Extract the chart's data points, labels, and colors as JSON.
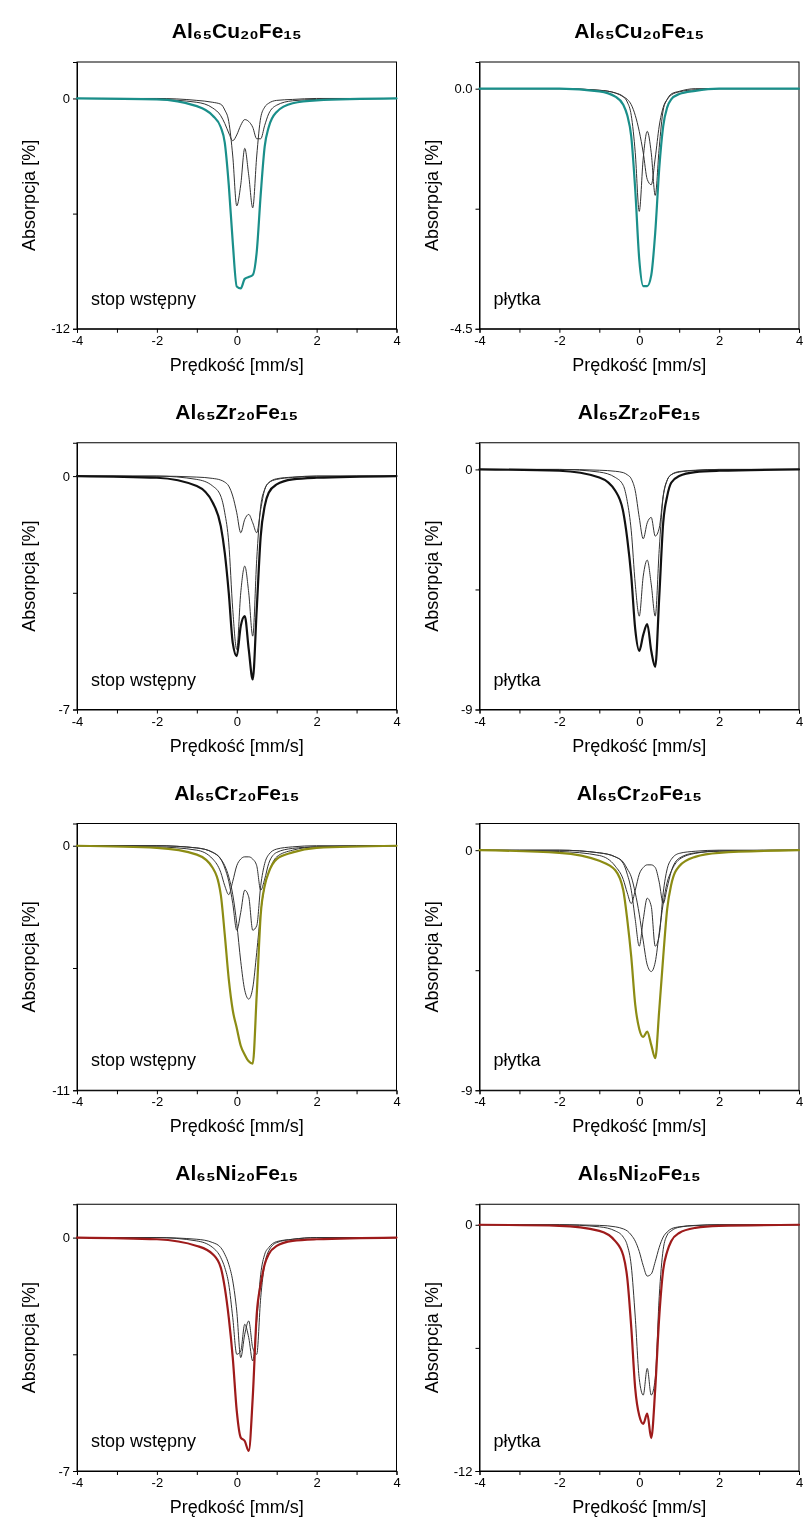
{
  "chart_data": [
    {
      "type": "line",
      "title": "Al₆₅Cu₂₀Fe₁₅",
      "xlabel": "Prędkość [mm/s]",
      "ylabel": "Absorpcja [%]",
      "annotations": [
        "stop wstępny"
      ],
      "x": [
        -4,
        -2,
        -1,
        -0.6,
        -0.4,
        -0.3,
        -0.2,
        -0.1,
        0,
        0.1,
        0.2,
        0.3,
        0.4,
        0.5,
        0.6,
        0.7,
        0.8,
        1,
        1.4,
        2,
        4
      ],
      "xlim": [
        -4,
        4
      ],
      "xticks": [
        -4,
        {
          "value": -3,
          "label": null
        },
        -2,
        {
          "value": -1,
          "label": null
        },
        0,
        {
          "value": 1,
          "label": null
        },
        2,
        {
          "value": 3,
          "label": null
        },
        4
      ],
      "ylim": [
        -12,
        1.9
      ],
      "yticks": [
        -12,
        {
          "value": -6,
          "label": null
        },
        0
      ],
      "series": [
        {
          "color": "#1a8f8a",
          "values": [
            0,
            -0.05,
            -0.4,
            -0.9,
            -1.5,
            -2.3,
            -4.5,
            -7.5,
            -9.8,
            -9.9,
            -9.4,
            -9.3,
            -9.2,
            -8,
            -5,
            -2.5,
            -1.5,
            -0.7,
            -0.25,
            -0.1,
            0
          ]
        },
        {
          "color": "#333333",
          "values": [
            0,
            0,
            -0.1,
            -0.2,
            -0.3,
            -0.6,
            -1.2,
            -3,
            -5.6,
            -4.5,
            -2.6,
            -4,
            -5.7,
            -3,
            -1,
            -0.45,
            -0.25,
            -0.1,
            -0.05,
            0,
            0
          ]
        },
        {
          "color": "#333333",
          "values": [
            0,
            -0.05,
            -0.2,
            -0.5,
            -0.9,
            -1.3,
            -1.8,
            -2.2,
            -1.9,
            -1.4,
            -1.1,
            -1.2,
            -1.5,
            -2.1,
            -2.1,
            -1.4,
            -0.8,
            -0.35,
            -0.12,
            -0.05,
            0
          ]
        }
      ]
    },
    {
      "type": "line",
      "title": "Al₆₅Cu₂₀Fe₁₅",
      "xlabel": "Prędkość [mm/s]",
      "ylabel": "Absorpcja [%]",
      "annotations": [
        "płytka"
      ],
      "x": [
        -4,
        -2,
        -1,
        -0.6,
        -0.4,
        -0.3,
        -0.2,
        -0.1,
        0,
        0.1,
        0.2,
        0.3,
        0.4,
        0.5,
        0.6,
        0.7,
        0.8,
        1,
        1.4,
        2,
        4
      ],
      "xlim": [
        -4,
        4
      ],
      "xticks": [
        -4,
        {
          "value": -3,
          "label": null
        },
        -2,
        {
          "value": -1,
          "label": null
        },
        0,
        {
          "value": 1,
          "label": null
        },
        2,
        {
          "value": 3,
          "label": null
        },
        4
      ],
      "ylim": [
        -4.5,
        0.5
      ],
      "yticks": [
        -4.5,
        {
          "value": -2.25,
          "label": null
        },
        {
          "value": 0,
          "label": "0.0"
        }
      ],
      "series": [
        {
          "color": "#1a8f8a",
          "values": [
            0,
            0,
            -0.05,
            -0.15,
            -0.3,
            -0.5,
            -0.9,
            -1.9,
            -3.2,
            -3.7,
            -3.7,
            -3.5,
            -2.7,
            -1.5,
            -0.7,
            -0.35,
            -0.2,
            -0.1,
            -0.04,
            0,
            0
          ]
        },
        {
          "color": "#333333",
          "values": [
            0,
            0,
            -0.03,
            -0.08,
            -0.15,
            -0.25,
            -0.5,
            -1.2,
            -2.3,
            -1.3,
            -0.8,
            -1.2,
            -2.0,
            -1.1,
            -0.4,
            -0.2,
            -0.1,
            -0.05,
            0,
            0,
            0
          ]
        },
        {
          "color": "#333333",
          "values": [
            0,
            0,
            -0.03,
            -0.08,
            -0.15,
            -0.2,
            -0.3,
            -0.5,
            -0.8,
            -1.2,
            -1.7,
            -1.8,
            -1.3,
            -0.7,
            -0.35,
            -0.2,
            -0.12,
            -0.06,
            -0.02,
            0,
            0
          ]
        }
      ]
    },
    {
      "type": "line",
      "title": "Al₆₅Zr₂₀Fe₁₅",
      "xlabel": "Prędkość [mm/s]",
      "ylabel": "Absorpcja [%]",
      "annotations": [
        "stop wstępny"
      ],
      "x": [
        -4,
        -2,
        -1,
        -0.6,
        -0.4,
        -0.3,
        -0.2,
        -0.1,
        0,
        0.1,
        0.2,
        0.3,
        0.4,
        0.5,
        0.6,
        0.7,
        0.8,
        1,
        1.4,
        2,
        4
      ],
      "xlim": [
        -4,
        4
      ],
      "xticks": [
        -4,
        {
          "value": -3,
          "label": null
        },
        -2,
        {
          "value": -1,
          "label": null
        },
        0,
        {
          "value": 1,
          "label": null
        },
        2,
        {
          "value": 3,
          "label": null
        },
        4
      ],
      "ylim": [
        -7,
        1
      ],
      "yticks": [
        -7,
        {
          "value": -3.5,
          "label": null
        },
        0
      ],
      "series": [
        {
          "color": "#111111",
          "values": [
            0,
            -0.05,
            -0.3,
            -0.8,
            -1.5,
            -2.3,
            -3.5,
            -5,
            -5.4,
            -4.5,
            -4.2,
            -5.2,
            -6.1,
            -4,
            -1.8,
            -0.9,
            -0.5,
            -0.25,
            -0.1,
            -0.05,
            0
          ]
        },
        {
          "color": "#333333",
          "values": [
            0,
            0,
            -0.1,
            -0.3,
            -0.6,
            -1.1,
            -2,
            -4,
            -5.2,
            -3.5,
            -2.7,
            -3.5,
            -4.8,
            -2.5,
            -0.9,
            -0.4,
            -0.2,
            -0.1,
            -0.04,
            0,
            0
          ]
        },
        {
          "color": "#333333",
          "values": [
            0,
            0,
            -0.03,
            -0.07,
            -0.12,
            -0.18,
            -0.3,
            -0.6,
            -1.1,
            -1.7,
            -1.3,
            -1.15,
            -1.4,
            -1.7,
            -1.0,
            -0.4,
            -0.2,
            -0.08,
            -0.03,
            0,
            0
          ]
        }
      ]
    },
    {
      "type": "line",
      "title": "Al₆₅Zr₂₀Fe₁₅",
      "xlabel": "Prędkość [mm/s]",
      "ylabel": "Absorpcja [%]",
      "annotations": [
        "płytka"
      ],
      "x": [
        -4,
        -2,
        -1,
        -0.6,
        -0.4,
        -0.3,
        -0.2,
        -0.1,
        0,
        0.1,
        0.2,
        0.3,
        0.4,
        0.5,
        0.6,
        0.7,
        0.8,
        1,
        1.4,
        2,
        4
      ],
      "xlim": [
        -4,
        4
      ],
      "xticks": [
        -4,
        {
          "value": -3,
          "label": null
        },
        -2,
        {
          "value": -1,
          "label": null
        },
        0,
        {
          "value": 1,
          "label": null
        },
        2,
        {
          "value": 3,
          "label": null
        },
        4
      ],
      "ylim": [
        -9,
        1
      ],
      "yticks": [
        -9,
        {
          "value": -4.5,
          "label": null
        },
        0
      ],
      "series": [
        {
          "color": "#111111",
          "values": [
            0,
            -0.05,
            -0.3,
            -0.8,
            -1.6,
            -2.6,
            -4,
            -6,
            -6.8,
            -6.2,
            -5.8,
            -6.8,
            -7.4,
            -4.8,
            -2,
            -1,
            -0.5,
            -0.25,
            -0.1,
            -0.05,
            0
          ]
        },
        {
          "color": "#333333",
          "values": [
            0,
            0,
            -0.1,
            -0.3,
            -0.6,
            -1.2,
            -2.3,
            -4.3,
            -5.5,
            -4,
            -3.4,
            -4.3,
            -5.5,
            -3,
            -1,
            -0.4,
            -0.2,
            -0.1,
            -0.04,
            0,
            0
          ]
        },
        {
          "color": "#333333",
          "values": [
            0,
            0,
            -0.03,
            -0.07,
            -0.12,
            -0.2,
            -0.35,
            -0.8,
            -1.8,
            -2.6,
            -2.0,
            -1.8,
            -2.5,
            -2.2,
            -1.0,
            -0.4,
            -0.2,
            -0.08,
            -0.03,
            0,
            0
          ]
        }
      ]
    },
    {
      "type": "line",
      "title": "Al₆₅Cr₂₀Fe₁₅",
      "xlabel": "Prędkość [mm/s]",
      "ylabel": "Absorpcja [%]",
      "annotations": [
        "stop wstępny"
      ],
      "x": [
        -4,
        -2,
        -1,
        -0.6,
        -0.4,
        -0.3,
        -0.2,
        -0.1,
        0,
        0.1,
        0.2,
        0.3,
        0.4,
        0.5,
        0.6,
        0.7,
        0.8,
        1,
        1.4,
        2,
        4
      ],
      "xlim": [
        -4,
        4
      ],
      "xticks": [
        -4,
        {
          "value": -3,
          "label": null
        },
        -2,
        {
          "value": -1,
          "label": null
        },
        0,
        {
          "value": 1,
          "label": null
        },
        2,
        {
          "value": 3,
          "label": null
        },
        4
      ],
      "ylim": [
        -11,
        1
      ],
      "yticks": [
        -11,
        {
          "value": -5.5,
          "label": null
        },
        0
      ],
      "series": [
        {
          "color": "#8c8c14",
          "values": [
            0,
            -0.1,
            -0.4,
            -1,
            -2.2,
            -4.0,
            -6.0,
            -7.4,
            -8.2,
            -9.0,
            -9.4,
            -9.7,
            -9.8,
            -6.7,
            -3.1,
            -1.8,
            -1.2,
            -0.6,
            -0.3,
            -0.1,
            0
          ]
        },
        {
          "color": "#333333",
          "values": [
            0,
            0,
            -0.1,
            -0.3,
            -0.6,
            -0.9,
            -1.4,
            -2.2,
            -3.5,
            -5.2,
            -6.5,
            -6.9,
            -6.4,
            -4.8,
            -3,
            -1.8,
            -1.2,
            -0.5,
            -0.2,
            -0.05,
            0
          ]
        },
        {
          "color": "#333333",
          "values": [
            0,
            0,
            -0.1,
            -0.3,
            -0.6,
            -1.0,
            -1.6,
            -2.6,
            -3.8,
            -3.0,
            -2.0,
            -2.3,
            -3.8,
            -3.6,
            -1.8,
            -0.8,
            -0.4,
            -0.15,
            -0.05,
            0,
            0
          ]
        },
        {
          "color": "#333333",
          "values": [
            0,
            -0.05,
            -0.2,
            -0.6,
            -1.2,
            -1.8,
            -2.2,
            -1.6,
            -0.9,
            -0.6,
            -0.5,
            -0.5,
            -0.6,
            -0.9,
            -2.0,
            -1.5,
            -0.8,
            -0.3,
            -0.12,
            -0.05,
            0
          ]
        }
      ]
    },
    {
      "type": "line",
      "title": "Al₆₅Cr₂₀Fe₁₅",
      "xlabel": "Prędkość [mm/s]",
      "ylabel": "Absorpcja [%]",
      "annotations": [
        "płytka"
      ],
      "x": [
        -4,
        -2,
        -1,
        -0.6,
        -0.4,
        -0.3,
        -0.2,
        -0.1,
        0,
        0.1,
        0.2,
        0.3,
        0.4,
        0.5,
        0.6,
        0.7,
        0.8,
        1,
        1.4,
        2,
        4
      ],
      "xlim": [
        -4,
        4
      ],
      "xticks": [
        -4,
        {
          "value": -3,
          "label": null
        },
        -2,
        {
          "value": -1,
          "label": null
        },
        0,
        {
          "value": 1,
          "label": null
        },
        2,
        {
          "value": 3,
          "label": null
        },
        4
      ],
      "ylim": [
        -9,
        1
      ],
      "yticks": [
        -9,
        {
          "value": -4.5,
          "label": null
        },
        0
      ],
      "series": [
        {
          "color": "#8c8c14",
          "values": [
            0,
            -0.1,
            -0.4,
            -0.75,
            -1.5,
            -2.6,
            -4.0,
            -5.8,
            -6.7,
            -7.0,
            -6.8,
            -7.3,
            -7.8,
            -6.0,
            -4.0,
            -2.2,
            -1.3,
            -0.6,
            -0.25,
            -0.1,
            0
          ]
        },
        {
          "color": "#333333",
          "values": [
            0,
            0,
            -0.1,
            -0.25,
            -0.45,
            -0.7,
            -1,
            -1.6,
            -2.4,
            -3.4,
            -4.3,
            -4.55,
            -4.2,
            -3.1,
            -2,
            -1.2,
            -0.8,
            -0.35,
            -0.12,
            -0.03,
            0
          ]
        },
        {
          "color": "#333333",
          "values": [
            0,
            0,
            -0.1,
            -0.25,
            -0.5,
            -0.9,
            -1.5,
            -2.6,
            -3.6,
            -2.6,
            -1.8,
            -2.1,
            -3.6,
            -3.2,
            -1.6,
            -0.7,
            -0.35,
            -0.12,
            -0.04,
            0,
            0
          ]
        },
        {
          "color": "#333333",
          "values": [
            0,
            -0.05,
            -0.2,
            -0.6,
            -1.1,
            -1.6,
            -2.0,
            -1.5,
            -0.9,
            -0.65,
            -0.55,
            -0.55,
            -0.65,
            -1.2,
            -2.0,
            -1.4,
            -0.8,
            -0.3,
            -0.1,
            -0.04,
            0
          ]
        }
      ]
    },
    {
      "type": "line",
      "title": "Al₆₅Ni₂₀Fe₁₅",
      "xlabel": "Prędkość [mm/s]",
      "ylabel": "Absorpcja [%]",
      "annotations": [
        "stop wstępny"
      ],
      "x": [
        -4,
        -2,
        -1,
        -0.6,
        -0.4,
        -0.3,
        -0.2,
        -0.1,
        0,
        0.1,
        0.2,
        0.3,
        0.4,
        0.5,
        0.6,
        0.7,
        0.8,
        1,
        1.4,
        2,
        4
      ],
      "xlim": [
        -4,
        4
      ],
      "xticks": [
        -4,
        {
          "value": -3,
          "label": null
        },
        -2,
        {
          "value": -1,
          "label": null
        },
        0,
        {
          "value": 1,
          "label": null
        },
        2,
        {
          "value": 3,
          "label": null
        },
        4
      ],
      "ylim": [
        -7,
        1
      ],
      "yticks": [
        -7,
        {
          "value": -3.5,
          "label": null
        },
        0
      ],
      "series": [
        {
          "color": "#9e1b1b",
          "values": [
            0,
            -0.05,
            -0.25,
            -0.5,
            -0.9,
            -1.5,
            -2.4,
            -3.6,
            -5.2,
            -6.0,
            -6.1,
            -6.4,
            -4.8,
            -2.3,
            -1.4,
            -0.8,
            -0.5,
            -0.25,
            -0.1,
            -0.05,
            0
          ]
        },
        {
          "color": "#333333",
          "values": [
            0,
            0,
            -0.1,
            -0.3,
            -0.6,
            -0.9,
            -1.4,
            -2.4,
            -3.5,
            -3.4,
            -2.6,
            -3.0,
            -3.7,
            -2.5,
            -1.1,
            -0.5,
            -0.3,
            -0.12,
            -0.05,
            0,
            0
          ]
        },
        {
          "color": "#333333",
          "values": [
            0,
            0,
            -0.05,
            -0.15,
            -0.3,
            -0.5,
            -0.8,
            -1.3,
            -2.2,
            -3.6,
            -2.9,
            -2.5,
            -3.3,
            -3.5,
            -1.8,
            -0.8,
            -0.4,
            -0.15,
            -0.05,
            0,
            0
          ]
        }
      ]
    },
    {
      "type": "line",
      "title": "Al₆₅Ni₂₀Fe₁₅",
      "xlabel": "Prędkość [mm/s]",
      "ylabel": "Absorpcja [%]",
      "annotations": [
        "płytka"
      ],
      "x": [
        -4,
        -2,
        -1,
        -0.6,
        -0.4,
        -0.3,
        -0.2,
        -0.1,
        0,
        0.1,
        0.2,
        0.3,
        0.4,
        0.5,
        0.6,
        0.7,
        0.8,
        1,
        1.4,
        2,
        4
      ],
      "xlim": [
        -4,
        4
      ],
      "xticks": [
        -4,
        {
          "value": -3,
          "label": null
        },
        -2,
        {
          "value": -1,
          "label": null
        },
        0,
        {
          "value": 1,
          "label": null
        },
        2,
        {
          "value": 3,
          "label": null
        },
        4
      ],
      "ylim": [
        -12,
        1
      ],
      "yticks": [
        -12,
        {
          "value": -6,
          "label": null
        },
        0
      ],
      "series": [
        {
          "color": "#9e1b1b",
          "values": [
            0,
            -0.05,
            -0.3,
            -0.8,
            -1.5,
            -2.6,
            -5,
            -8,
            -9.3,
            -9.7,
            -9.2,
            -10.4,
            -8,
            -4.5,
            -2.2,
            -1.3,
            -0.8,
            -0.4,
            -0.15,
            -0.05,
            0
          ]
        },
        {
          "color": "#333333",
          "values": [
            0,
            0,
            -0.1,
            -0.3,
            -0.6,
            -1,
            -2,
            -4.5,
            -7.5,
            -8.3,
            -7.0,
            -8.3,
            -7.5,
            -3.5,
            -1.2,
            -0.5,
            -0.3,
            -0.12,
            -0.04,
            0,
            0
          ]
        },
        {
          "color": "#333333",
          "values": [
            0,
            0,
            -0.03,
            -0.1,
            -0.2,
            -0.3,
            -0.5,
            -0.8,
            -1.3,
            -2.0,
            -2.5,
            -2.4,
            -1.8,
            -1.1,
            -0.6,
            -0.35,
            -0.2,
            -0.1,
            -0.03,
            0,
            0
          ]
        }
      ]
    }
  ]
}
